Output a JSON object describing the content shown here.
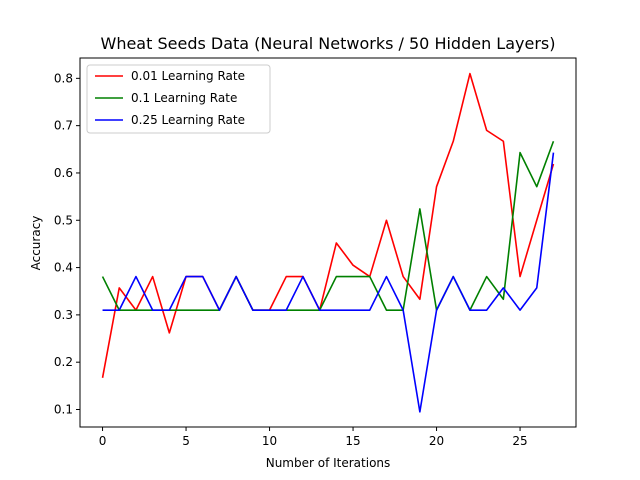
{
  "chart_data": {
    "type": "line",
    "title": "Wheat Seeds Data (Neural Networks / 50 Hidden Layers)",
    "xlabel": "Number of Iterations",
    "ylabel": "Accuracy",
    "xlim": [
      -1.35,
      28.35
    ],
    "ylim": [
      0.063,
      0.843
    ],
    "xticks": [
      0,
      5,
      10,
      15,
      20,
      25
    ],
    "yticks": [
      0.1,
      0.2,
      0.3,
      0.4,
      0.5,
      0.6,
      0.7,
      0.8
    ],
    "xtick_labels": [
      "0",
      "5",
      "10",
      "15",
      "20",
      "25"
    ],
    "ytick_labels": [
      "0.1",
      "0.2",
      "0.3",
      "0.4",
      "0.5",
      "0.6",
      "0.7",
      "0.8"
    ],
    "grid": false,
    "legend_position": "top-left",
    "x": [
      0,
      1,
      2,
      3,
      4,
      5,
      6,
      7,
      8,
      9,
      10,
      11,
      12,
      13,
      14,
      15,
      16,
      17,
      18,
      19,
      20,
      21,
      22,
      23,
      24,
      25,
      26,
      27
    ],
    "series": [
      {
        "name": "0.01 Learning Rate",
        "color": "#ff0000",
        "values": [
          0.167,
          0.357,
          0.31,
          0.381,
          0.262,
          0.381,
          0.381,
          0.31,
          0.381,
          0.31,
          0.31,
          0.381,
          0.381,
          0.31,
          0.452,
          0.405,
          0.381,
          0.5,
          0.381,
          0.333,
          0.571,
          0.667,
          0.81,
          0.69,
          0.667,
          0.381,
          0.5,
          0.619
        ]
      },
      {
        "name": "0.1 Learning Rate",
        "color": "#008000",
        "values": [
          0.381,
          0.31,
          0.31,
          0.31,
          0.31,
          0.31,
          0.31,
          0.31,
          0.381,
          0.31,
          0.31,
          0.31,
          0.31,
          0.31,
          0.381,
          0.381,
          0.381,
          0.31,
          0.31,
          0.524,
          0.31,
          0.381,
          0.31,
          0.381,
          0.333,
          0.643,
          0.571,
          0.667
        ]
      },
      {
        "name": "0.25 Learning Rate",
        "color": "#0000ff",
        "values": [
          0.31,
          0.31,
          0.381,
          0.31,
          0.31,
          0.381,
          0.381,
          0.31,
          0.381,
          0.31,
          0.31,
          0.31,
          0.381,
          0.31,
          0.31,
          0.31,
          0.31,
          0.381,
          0.31,
          0.095,
          0.31,
          0.381,
          0.31,
          0.31,
          0.357,
          0.31,
          0.357,
          0.643
        ]
      }
    ]
  }
}
